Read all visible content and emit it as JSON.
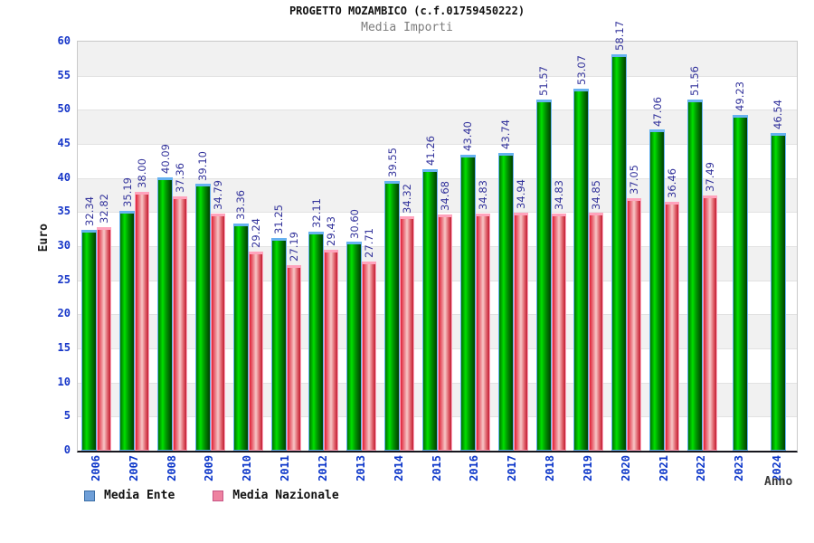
{
  "header": {
    "title": "PROGETTO MOZAMBICO (c.f.01759450222)",
    "subtitle": "Media Importi"
  },
  "chart_data": {
    "type": "bar",
    "title": "PROGETTO MOZAMBICO (c.f.01759450222)",
    "subtitle": "Media Importi",
    "xlabel": "Anno",
    "ylabel": "Euro",
    "ylim": [
      0,
      60
    ],
    "ytick_step": 5,
    "grid": "alternating-horizontal-bands",
    "legend_position": "bottom-left",
    "value_labels": "rotated-90-above-bars, 2 decimals",
    "categories": [
      "2006",
      "2007",
      "2008",
      "2009",
      "2010",
      "2011",
      "2012",
      "2013",
      "2014",
      "2015",
      "2016",
      "2017",
      "2018",
      "2019",
      "2020",
      "2021",
      "2022",
      "2023",
      "2024"
    ],
    "series": [
      {
        "name": "Media Ente",
        "values": [
          32.34,
          35.19,
          40.09,
          39.1,
          33.36,
          31.25,
          32.11,
          30.6,
          39.55,
          41.26,
          43.4,
          43.74,
          51.57,
          53.07,
          58.17,
          47.06,
          51.56,
          49.23,
          46.54
        ]
      },
      {
        "name": "Media Nazionale",
        "values": [
          32.82,
          38.0,
          37.36,
          34.79,
          29.24,
          27.19,
          29.43,
          27.71,
          34.32,
          34.68,
          34.83,
          34.94,
          34.83,
          34.85,
          37.05,
          36.46,
          37.49,
          null,
          null
        ]
      }
    ]
  },
  "colors": {
    "green_bar_gradient": [
      "#007400",
      "#00e000",
      "#009800",
      "#003f00"
    ],
    "green_bar_border": "#66b2f0",
    "red_bar_gradient": [
      "#df1f35",
      "#f7c6c6",
      "#dd5964",
      "#c01f33"
    ],
    "red_bar_border": "#ffa3bc",
    "legend_ente_fill": "#6f9fd8",
    "legend_ente_border": "#3b6ea5",
    "legend_nazionale_fill": "#ee82a0",
    "legend_nazionale_border": "#c75585",
    "value_label_color": "#32329b",
    "axis_tick_color": "#1535c8",
    "band_gray": "#f1f1f1",
    "band_white": "#ffffff"
  }
}
